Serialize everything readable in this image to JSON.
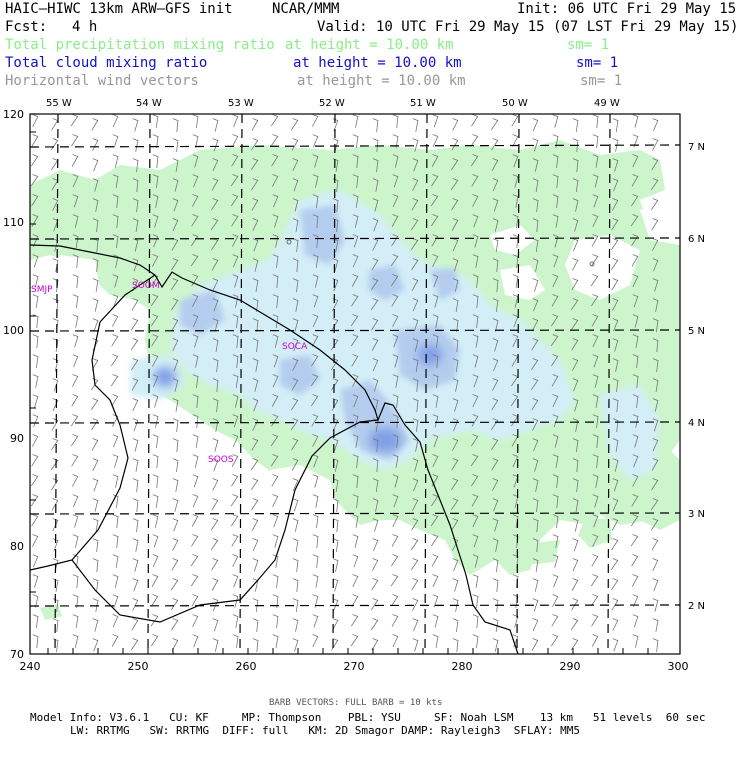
{
  "header": {
    "title_left": "HAIC–HIWC 13km ARW–GFS init",
    "title_org": "NCAR/MMM",
    "init": "Init: 06 UTC Fri 29 May 15",
    "fcst_label": "Fcst:",
    "fcst_value": "4 h",
    "valid": "Valid: 10 UTC Fri 29 May 15 (07 LST Fri 29 May 15)",
    "fields": [
      {
        "name": "Total precipitation mixing ratio",
        "height": "at height = 10.00 km",
        "sm": "sm= 1",
        "color": "#88ee88"
      },
      {
        "name": "Total cloud mixing ratio",
        "height": "at height = 10.00 km",
        "sm": "sm= 1",
        "color": "#1111cc"
      },
      {
        "name": "Horizontal wind vectors",
        "height": "at height = 10.00 km",
        "sm": "sm= 1",
        "color": "#999999"
      }
    ]
  },
  "map": {
    "top_axis": [
      "55 W",
      "54 W",
      "53 W",
      "52 W",
      "51 W",
      "50 W",
      "49 W"
    ],
    "right_axis": [
      "7 N",
      "6 N",
      "5 N",
      "4 N",
      "3 N",
      "2 N"
    ],
    "left_axis": [
      "120",
      "110",
      "100",
      "90",
      "80",
      "70"
    ],
    "bottom_axis": [
      "240",
      "250",
      "260",
      "270",
      "280",
      "290",
      "300"
    ],
    "stations": [
      "SMJP",
      "SOCA",
      "SOOM",
      "SOOS"
    ],
    "colors": {
      "precip": "#ccf5cc",
      "cloud_light": "#d3eef7",
      "cloud_mid": "#b4cdee",
      "cloud_dark": "#7f9ee6",
      "coast": "#000000",
      "station": "#cc00cc",
      "barb": "#777777"
    }
  },
  "footer": {
    "barb_note": "BARB VECTORS: FULL BARB = 10 kts",
    "line1": "Model Info: V3.6.1   CU: KF     MP: Thompson    PBL: YSU     SF: Noah LSM    13 km   51 levels  60 sec",
    "line2": "LW: RRTMG   SW: RRTMG  DIFF: full   KM: 2D Smagor DAMP: Rayleigh3  SFLAY: MM5"
  }
}
